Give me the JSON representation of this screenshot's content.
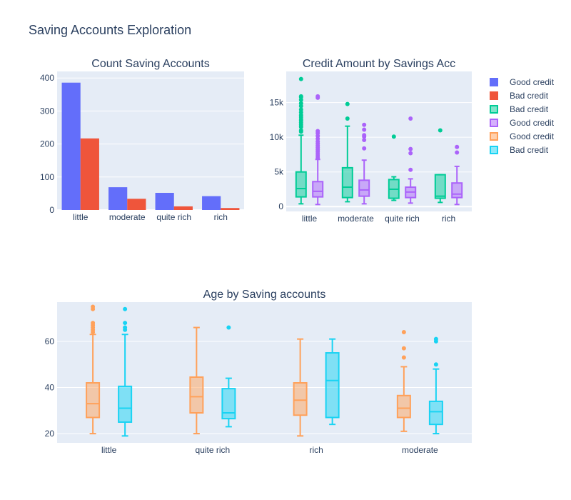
{
  "title": "Saving Accounts Exploration",
  "colors": {
    "good_bar": "#636efa",
    "bad_bar": "#ef553b",
    "good_box_a": "#ab63fa",
    "bad_box_a": "#00cc96",
    "good_box_b": "#ffa15a",
    "bad_box_b": "#19d3f3",
    "plot_bg": "#e5ecf6",
    "grid": "#ffffff",
    "text": "#2a3f5f"
  },
  "legend": [
    {
      "label": "Good credit",
      "color": "#636efa",
      "style": "solid"
    },
    {
      "label": "Bad credit",
      "color": "#ef553b",
      "style": "solid"
    },
    {
      "label": "Bad credit",
      "color": "#00cc96",
      "style": "box"
    },
    {
      "label": "Good credit",
      "color": "#ab63fa",
      "style": "box"
    },
    {
      "label": "Good credit",
      "color": "#ffa15a",
      "style": "box"
    },
    {
      "label": "Bad credit",
      "color": "#19d3f3",
      "style": "box"
    }
  ],
  "chart_data": [
    {
      "type": "bar",
      "title": "Count Saving Accounts",
      "categories": [
        "little",
        "moderate",
        "quite rich",
        "rich"
      ],
      "series": [
        {
          "name": "Good credit",
          "values": [
            386,
            69,
            52,
            42
          ]
        },
        {
          "name": "Bad credit",
          "values": [
            217,
            34,
            11,
            6
          ]
        }
      ],
      "ylim": [
        0,
        420
      ],
      "yticks": [
        0,
        100,
        200,
        300,
        400
      ]
    },
    {
      "type": "box",
      "title": "Credit Amount by Savings Acc",
      "categories": [
        "little",
        "moderate",
        "quite rich",
        "rich"
      ],
      "ylim": [
        -700,
        19500
      ],
      "yticks": [
        0,
        5000,
        10000,
        15000
      ],
      "ytick_labels": [
        "0",
        "5k",
        "10k",
        "15k"
      ],
      "series": [
        {
          "name": "Bad credit",
          "boxes": [
            {
              "q1": 1400,
              "median": 2600,
              "q3": 5000,
              "lo": 400,
              "hi": 10300,
              "outliers": [
                10800,
                11000,
                11500,
                11800,
                12100,
                12400,
                12600,
                12900,
                13200,
                13600,
                14000,
                14500,
                14900,
                15400,
                15800,
                15900,
                18400
              ]
            },
            {
              "q1": 1300,
              "median": 2800,
              "q3": 5600,
              "lo": 700,
              "hi": 11600,
              "outliers": [
                12700,
                14800
              ]
            },
            {
              "q1": 1200,
              "median": 2500,
              "q3": 3900,
              "lo": 900,
              "hi": 4300,
              "outliers": [
                10100
              ]
            },
            {
              "q1": 1200,
              "median": 1500,
              "q3": 4600,
              "lo": 600,
              "hi": 4600,
              "outliers": [
                11000
              ]
            }
          ]
        },
        {
          "name": "Good credit",
          "boxes": [
            {
              "q1": 1400,
              "median": 2200,
              "q3": 3600,
              "lo": 300,
              "hi": 6800,
              "outliers": [
                7000,
                7300,
                7600,
                7900,
                8200,
                8500,
                8800,
                9100,
                9400,
                9800,
                10200,
                10600,
                10900,
                15700,
                15900
              ]
            },
            {
              "q1": 1500,
              "median": 2400,
              "q3": 3800,
              "lo": 400,
              "hi": 6700,
              "outliers": [
                8400,
                9600,
                10100,
                10300,
                11100,
                11800
              ]
            },
            {
              "q1": 1300,
              "median": 2100,
              "q3": 2800,
              "lo": 500,
              "hi": 4000,
              "outliers": [
                5300,
                7700,
                8300,
                12700
              ]
            },
            {
              "q1": 1300,
              "median": 1800,
              "q3": 3400,
              "lo": 300,
              "hi": 5800,
              "outliers": [
                7800,
                8600
              ]
            }
          ]
        }
      ]
    },
    {
      "type": "box",
      "title": "Age by Saving accounts",
      "categories": [
        "little",
        "quite rich",
        "rich",
        "moderate"
      ],
      "ylim": [
        16,
        77
      ],
      "yticks": [
        20,
        40,
        60
      ],
      "ytick_labels": [
        "20",
        "40",
        "60"
      ],
      "series": [
        {
          "name": "Good credit",
          "boxes": [
            {
              "q1": 27,
              "median": 33,
              "q3": 42,
              "lo": 20,
              "hi": 63,
              "outliers": [
                64,
                65,
                66,
                67,
                68,
                74,
                75
              ]
            },
            {
              "q1": 29,
              "median": 36,
              "q3": 44.5,
              "lo": 20,
              "hi": 66,
              "outliers": []
            },
            {
              "q1": 28,
              "median": 34.5,
              "q3": 42,
              "lo": 19,
              "hi": 61,
              "outliers": []
            },
            {
              "q1": 27,
              "median": 31,
              "q3": 36.5,
              "lo": 21,
              "hi": 49,
              "outliers": [
                53,
                57,
                64
              ]
            }
          ]
        },
        {
          "name": "Bad credit",
          "boxes": [
            {
              "q1": 25,
              "median": 31,
              "q3": 40.5,
              "lo": 19,
              "hi": 63,
              "outliers": [
                65,
                66,
                68,
                74
              ]
            },
            {
              "q1": 26.5,
              "median": 29,
              "q3": 39.5,
              "lo": 23,
              "hi": 44,
              "outliers": [
                66
              ]
            },
            {
              "q1": 27,
              "median": 43,
              "q3": 55,
              "lo": 24,
              "hi": 61,
              "outliers": []
            },
            {
              "q1": 24,
              "median": 29.5,
              "q3": 34,
              "lo": 20,
              "hi": 48,
              "outliers": [
                50,
                60,
                61
              ]
            }
          ]
        }
      ]
    }
  ]
}
